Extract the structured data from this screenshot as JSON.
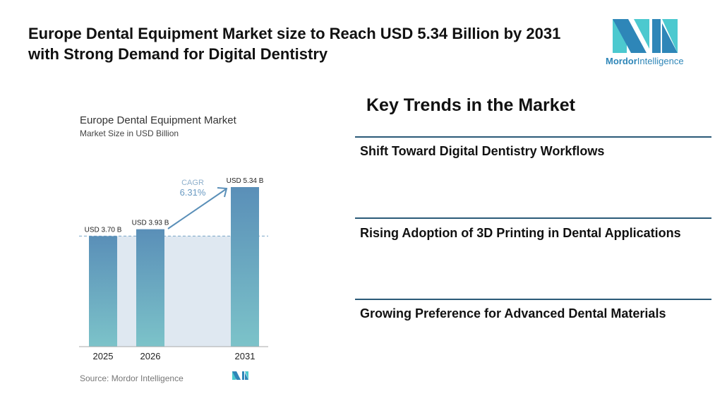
{
  "header": {
    "title": "Europe Dental Equipment Market size to Reach USD 5.34 Billion by 2031 with Strong Demand for Digital Dentistry",
    "logo_text_bold": "Mordor",
    "logo_text": "Intelligence"
  },
  "chart_data": {
    "type": "bar",
    "title": "Europe Dental Equipment Market",
    "subtitle": "Market Size in USD Billion",
    "categories": [
      "2025",
      "2026",
      "2031"
    ],
    "values": [
      3.7,
      3.93,
      5.34
    ],
    "data_labels": [
      "USD 3.70 B",
      "USD 3.93 B",
      "USD 5.34 B"
    ],
    "annotation": {
      "label": "CAGR",
      "value": "6.31%"
    },
    "source": "Source: Mordor Intelligence",
    "ylim": [
      0,
      5.34
    ],
    "colors": {
      "bar_top": "#5a8fb8",
      "bar_bottom": "#7cc3c9",
      "shade": "#dfe8f1",
      "cagr": "#6a9bc3"
    }
  },
  "trends": {
    "heading": "Key Trends in the Market",
    "items": [
      "Shift Toward Digital Dentistry Workflows",
      "Rising Adoption of 3D Printing in Dental Applications",
      "Growing Preference for Advanced Dental Materials"
    ]
  }
}
